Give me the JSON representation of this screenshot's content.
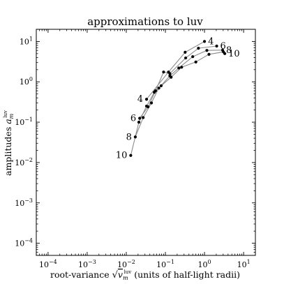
{
  "chart_data": {
    "type": "line",
    "title": "approximations to luv",
    "xlabel": {
      "prefix": "root-variance ",
      "sqrt_base": "v",
      "sqrt_sub": "m",
      "sqrt_sup": "luv",
      "suffix": " (units of half-light radii)"
    },
    "ylabel": {
      "prefix": "amplitudes ",
      "base": "a",
      "sub": "m",
      "sup": "luv"
    },
    "xscale": "log",
    "yscale": "log",
    "xlim": [
      5e-05,
      20
    ],
    "ylim": [
      5e-05,
      20
    ],
    "grid": false,
    "xticks": [
      {
        "value": 0.0001,
        "base": "10",
        "exp": "−4"
      },
      {
        "value": 0.001,
        "base": "10",
        "exp": "−3"
      },
      {
        "value": 0.01,
        "base": "10",
        "exp": "−2"
      },
      {
        "value": 0.1,
        "base": "10",
        "exp": "−1"
      },
      {
        "value": 1,
        "base": "10",
        "exp": "0"
      },
      {
        "value": 10,
        "base": "10",
        "exp": "1"
      }
    ],
    "yticks": [
      {
        "value": 0.0001,
        "base": "10",
        "exp": "−4"
      },
      {
        "value": 0.001,
        "base": "10",
        "exp": "−3"
      },
      {
        "value": 0.01,
        "base": "10",
        "exp": "−2"
      },
      {
        "value": 0.1,
        "base": "10",
        "exp": "−1"
      },
      {
        "value": 1,
        "base": "10",
        "exp": "0"
      },
      {
        "value": 10,
        "base": "10",
        "exp": "1"
      }
    ],
    "series": [
      {
        "name": "4",
        "start_label": "4",
        "end_label": "4",
        "x": [
          0.033,
          0.12,
          0.32,
          1.0
        ],
        "y": [
          0.37,
          1.75,
          5.4,
          10.0
        ]
      },
      {
        "name": "6",
        "start_label": "6",
        "end_label": "6",
        "x": [
          0.022,
          0.036,
          0.056,
          0.09,
          0.13,
          0.33,
          0.7,
          2.05
        ],
        "y": [
          0.125,
          0.24,
          0.6,
          1.75,
          1.6,
          3.9,
          6.8,
          7.7
        ]
      },
      {
        "name": "8",
        "start_label": "8",
        "end_label": "8",
        "x": [
          0.017,
          0.027,
          0.044,
          0.068,
          0.13,
          0.22,
          0.5,
          1.15,
          2.9
        ],
        "y": [
          0.043,
          0.13,
          0.3,
          0.7,
          1.4,
          2.2,
          4.2,
          6.0,
          6.1
        ]
      },
      {
        "name": "10",
        "start_label": "10",
        "end_label": "10",
        "x": [
          0.013,
          0.021,
          0.033,
          0.052,
          0.078,
          0.14,
          0.26,
          0.6,
          1.3,
          3.05,
          3.3
        ],
        "y": [
          0.015,
          0.1,
          0.25,
          0.55,
          0.8,
          1.3,
          2.3,
          3.1,
          4.8,
          5.5,
          5.0
        ]
      }
    ]
  }
}
